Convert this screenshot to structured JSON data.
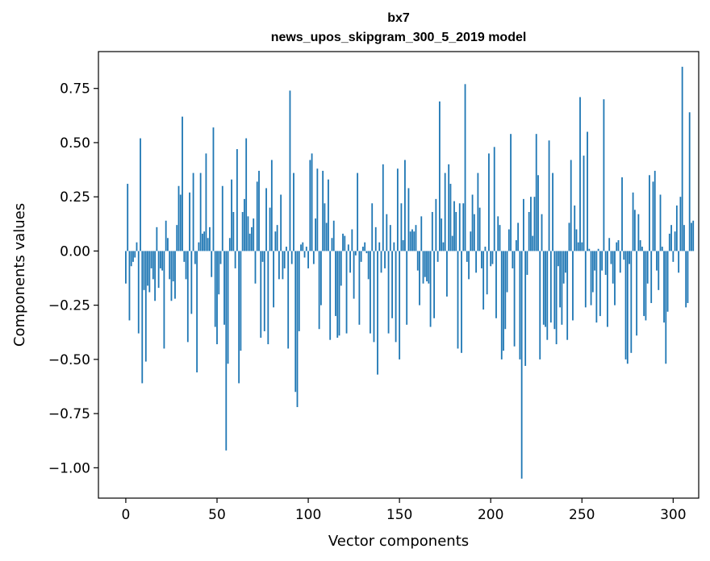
{
  "chart_data": {
    "type": "bar",
    "title_line1": "bx7",
    "title_line2": "news_upos_skipgram_300_5_2019 model",
    "xlabel": "Vector components",
    "ylabel": "Components values",
    "xlim": [
      -15,
      314
    ],
    "ylim": [
      -1.14,
      0.92
    ],
    "xticks": [
      0,
      50,
      100,
      150,
      200,
      250,
      300
    ],
    "xtick_labels": [
      "0",
      "50",
      "100",
      "150",
      "200",
      "250",
      "300"
    ],
    "yticks": [
      -1.0,
      -0.75,
      -0.5,
      -0.25,
      0.0,
      0.25,
      0.5,
      0.75
    ],
    "ytick_labels": [
      "−1.00",
      "−0.75",
      "−0.50",
      "−0.25",
      "0.00",
      "0.25",
      "0.50",
      "0.75"
    ],
    "bar_color": "#1f77b4",
    "values": [
      -0.15,
      0.31,
      -0.32,
      -0.07,
      -0.05,
      -0.03,
      0.04,
      -0.38,
      0.52,
      -0.61,
      -0.18,
      -0.51,
      -0.16,
      -0.19,
      -0.08,
      -0.13,
      -0.23,
      0.11,
      -0.17,
      -0.08,
      -0.09,
      -0.45,
      0.14,
      0.06,
      -0.13,
      -0.23,
      -0.14,
      -0.22,
      0.12,
      0.3,
      0.26,
      0.62,
      -0.05,
      -0.13,
      -0.42,
      0.27,
      -0.29,
      0.36,
      -0.06,
      -0.56,
      0.04,
      0.36,
      0.08,
      0.09,
      0.45,
      0.06,
      0.11,
      -0.12,
      0.57,
      -0.35,
      -0.43,
      -0.2,
      -0.06,
      0.3,
      -0.34,
      -0.92,
      -0.52,
      0.06,
      0.33,
      0.18,
      -0.08,
      0.47,
      -0.61,
      -0.46,
      0.18,
      0.24,
      0.52,
      0.16,
      0.08,
      0.11,
      0.15,
      -0.15,
      0.32,
      0.37,
      -0.4,
      -0.05,
      -0.37,
      0.29,
      -0.43,
      0.2,
      0.42,
      -0.26,
      0.09,
      0.12,
      -0.13,
      0.26,
      -0.13,
      -0.08,
      0.02,
      -0.45,
      0.74,
      -0.06,
      0.36,
      -0.65,
      -0.72,
      -0.37,
      0.03,
      0.04,
      -0.03,
      0.02,
      -0.08,
      0.42,
      0.45,
      -0.06,
      0.15,
      0.38,
      -0.36,
      -0.25,
      0.37,
      0.22,
      0.13,
      0.33,
      -0.41,
      0.06,
      0.14,
      -0.3,
      -0.4,
      -0.39,
      -0.16,
      0.08,
      0.07,
      -0.38,
      0.03,
      -0.1,
      0.1,
      -0.22,
      -0.02,
      0.36,
      -0.34,
      -0.05,
      0.02,
      0.04,
      -0.01,
      -0.13,
      -0.38,
      0.22,
      -0.42,
      0.11,
      -0.57,
      0.04,
      -0.1,
      0.4,
      -0.08,
      0.17,
      -0.38,
      0.12,
      -0.31,
      0.04,
      -0.42,
      0.38,
      -0.5,
      0.22,
      0.05,
      0.42,
      -0.34,
      0.29,
      0.09,
      0.1,
      0.09,
      0.12,
      -0.09,
      -0.25,
      0.16,
      -0.15,
      -0.12,
      -0.14,
      -0.15,
      -0.35,
      0.18,
      -0.31,
      0.24,
      -0.05,
      0.69,
      0.15,
      0.04,
      0.36,
      -0.21,
      0.4,
      0.31,
      0.07,
      0.23,
      0.18,
      -0.45,
      0.22,
      -0.47,
      0.22,
      0.77,
      -0.05,
      -0.13,
      0.09,
      0.26,
      0.17,
      -0.1,
      0.36,
      0.2,
      -0.08,
      -0.27,
      0.02,
      -0.2,
      0.45,
      -0.07,
      -0.06,
      0.48,
      -0.31,
      0.16,
      0.12,
      -0.5,
      -0.46,
      -0.36,
      -0.19,
      0.1,
      0.54,
      -0.08,
      -0.44,
      0.05,
      0.13,
      -0.5,
      -1.05,
      0.24,
      -0.53,
      -0.11,
      0.18,
      0.25,
      0.07,
      0.25,
      0.54,
      0.35,
      -0.5,
      0.17,
      -0.34,
      -0.35,
      -0.41,
      0.51,
      -0.33,
      0.36,
      -0.36,
      -0.43,
      -0.07,
      -0.26,
      -0.34,
      -0.15,
      -0.1,
      -0.41,
      0.13,
      0.42,
      -0.32,
      0.21,
      0.1,
      0.04,
      0.71,
      0.04,
      0.44,
      -0.26,
      0.55,
      0.01,
      -0.25,
      -0.19,
      -0.09,
      -0.33,
      0.01,
      -0.3,
      -0.09,
      0.7,
      -0.11,
      -0.35,
      0.06,
      -0.06,
      -0.15,
      -0.25,
      0.04,
      0.05,
      -0.1,
      0.34,
      -0.04,
      -0.5,
      -0.52,
      -0.06,
      -0.47,
      0.27,
      0.19,
      -0.39,
      0.17,
      0.05,
      0.02,
      -0.3,
      -0.32,
      -0.15,
      0.35,
      -0.24,
      0.32,
      0.37,
      -0.09,
      -0.18,
      0.26,
      0.02,
      -0.33,
      -0.52,
      -0.28,
      0.08,
      0.12,
      -0.05,
      0.09,
      0.21,
      -0.1,
      0.25,
      0.85,
      0.12,
      -0.26,
      -0.24,
      0.64,
      0.13,
      0.14
    ]
  }
}
